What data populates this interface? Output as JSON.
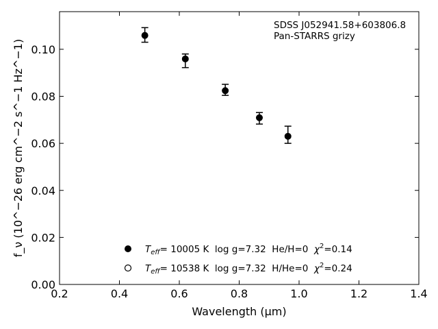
{
  "chart_data": {
    "type": "scatter",
    "xlabel": "Wavelength (μm)",
    "ylabel": "f_ν (10^−26 erg cm^−2 s^−1 Hz^−1)",
    "xlim": [
      0.2,
      1.4
    ],
    "ylim": [
      0.0,
      0.116
    ],
    "xticks": [
      "0.2",
      "0.4",
      "0.6",
      "0.8",
      "1.0",
      "1.2",
      "1.4"
    ],
    "yticks": [
      "0.00",
      "0.02",
      "0.04",
      "0.06",
      "0.08",
      "0.10"
    ],
    "grid": false,
    "annotations": [
      "SDSS J052941.58+603806.8",
      "Pan-STARRS grizy"
    ],
    "legend": {
      "placement": "lower-center",
      "entries": [
        {
          "marker": "filled-circle",
          "t_symbol": "T",
          "t_sub": "eff",
          "text": "= 10005 K  log g=7.32  He/H=0  ",
          "chi_symbol": "χ",
          "chi_sup": "2",
          "chi_value": "=0.14"
        },
        {
          "marker": "open-circle",
          "t_symbol": "T",
          "t_sub": "eff",
          "text": "= 10538 K  log g=7.32  H/He=0  ",
          "chi_symbol": "χ",
          "chi_sup": "2",
          "chi_value": "=0.24"
        }
      ]
    },
    "series": [
      {
        "marker": "filled-circle",
        "color": "#000000",
        "x": [
          0.4849,
          0.6201,
          0.7535,
          0.8674,
          0.9628
        ],
        "y": [
          0.1059,
          0.0959,
          0.0824,
          0.0709,
          0.063
        ],
        "yerr_low": [
          0.0029,
          0.0037,
          0.002,
          0.0027,
          0.003
        ],
        "yerr_high": [
          0.0033,
          0.0021,
          0.0027,
          0.0022,
          0.0043
        ]
      }
    ]
  }
}
